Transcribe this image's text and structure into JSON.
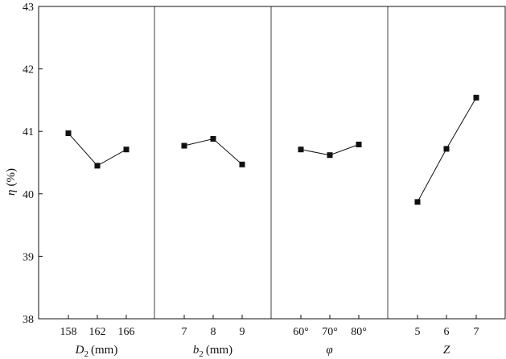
{
  "chart_data": {
    "type": "line",
    "ylabel_symbol": "η",
    "ylabel_unit": "(%)",
    "ylim": [
      38,
      43
    ],
    "yticks": [
      38,
      39,
      40,
      41,
      42,
      43
    ],
    "grid": false,
    "panels": [
      {
        "xlabel_symbol": "D",
        "xlabel_sub": "2",
        "xlabel_unit": "(mm)",
        "categories": [
          "158",
          "162",
          "166"
        ],
        "values": [
          40.97,
          40.45,
          40.71
        ]
      },
      {
        "xlabel_symbol": "b",
        "xlabel_sub": "2",
        "xlabel_unit": "(mm)",
        "categories": [
          "7",
          "8",
          "9"
        ],
        "values": [
          40.77,
          40.88,
          40.47
        ]
      },
      {
        "xlabel_symbol": "φ",
        "xlabel_sub": "",
        "xlabel_unit": "",
        "categories": [
          "60°",
          "70°",
          "80°"
        ],
        "values": [
          40.71,
          40.62,
          40.79
        ]
      },
      {
        "xlabel_symbol": "Z",
        "xlabel_sub": "",
        "xlabel_unit": "",
        "categories": [
          "5",
          "6",
          "7"
        ],
        "values": [
          39.87,
          40.72,
          41.54
        ]
      }
    ]
  }
}
